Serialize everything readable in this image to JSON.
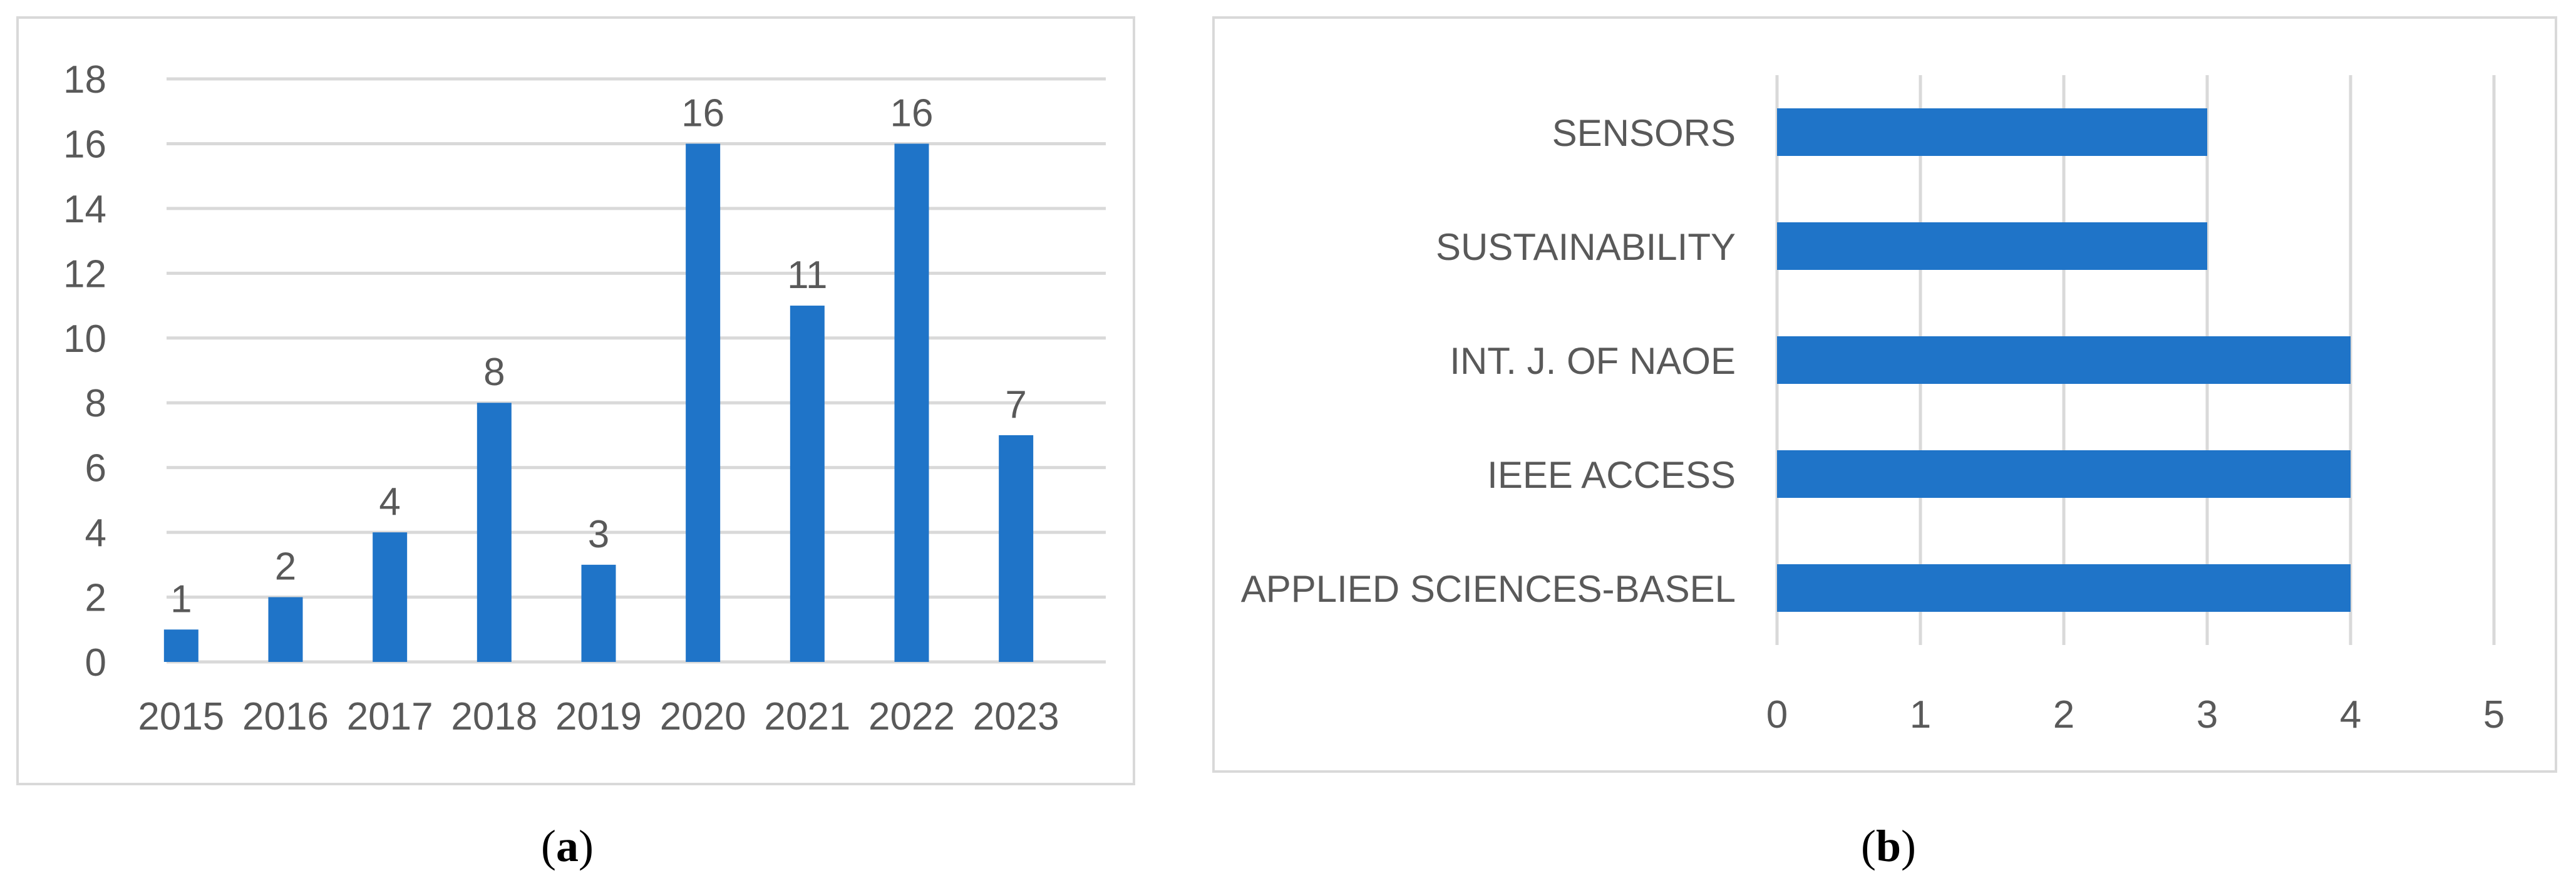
{
  "chart_data": [
    {
      "panel": "a",
      "type": "bar",
      "orientation": "vertical",
      "title": "",
      "xlabel": "",
      "ylabel": "",
      "categories": [
        "2015",
        "2016",
        "2017",
        "2018",
        "2019",
        "2020",
        "2021",
        "2022",
        "2023"
      ],
      "values": [
        1,
        2,
        4,
        8,
        3,
        16,
        11,
        16,
        7
      ],
      "data_labels": [
        "1",
        "2",
        "4",
        "8",
        "3",
        "16",
        "11",
        "16",
        "7"
      ],
      "ylim": [
        0,
        18
      ],
      "yticks": [
        0,
        2,
        4,
        6,
        8,
        10,
        12,
        14,
        16,
        18
      ],
      "grid": true,
      "legend": "none",
      "bar_color": "#1f74c8"
    },
    {
      "panel": "b",
      "type": "bar",
      "orientation": "horizontal",
      "title": "",
      "xlabel": "",
      "ylabel": "",
      "categories": [
        "SENSORS",
        "SUSTAINABILITY",
        "INT. J. OF NAOE",
        "IEEE ACCESS",
        "APPLIED SCIENCES-BASEL"
      ],
      "values": [
        3,
        3,
        4,
        4,
        4
      ],
      "xlim": [
        0,
        5
      ],
      "xticks": [
        0,
        1,
        2,
        3,
        4,
        5
      ],
      "grid": true,
      "legend": "none",
      "bar_color": "#1f74c8"
    }
  ],
  "captions": [
    {
      "open": "(",
      "label": "a",
      "close": ")"
    },
    {
      "open": "(",
      "label": "b",
      "close": ")"
    }
  ],
  "colors": {
    "bar": "#1f74c8",
    "grid": "#d9d9d9",
    "axis_text": "#595959",
    "panel_border": "#d9d9d9"
  }
}
